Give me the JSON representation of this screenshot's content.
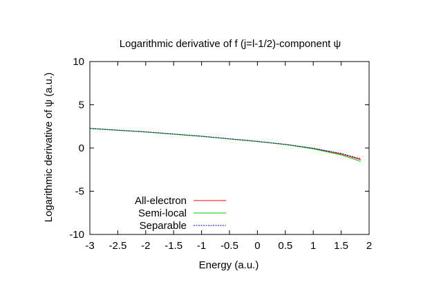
{
  "chart_data": {
    "type": "line",
    "title": "Logarithmic derivative of f (j=l-1/2)-component ψ",
    "xlabel": "Energy (a.u.)",
    "ylabel": "Logarithmic derivative of ψ (a.u.)",
    "xlim": [
      -3,
      2
    ],
    "ylim": [
      -10,
      10
    ],
    "xticks": [
      -3,
      -2.5,
      -2,
      -1.5,
      -1,
      -0.5,
      0,
      0.5,
      1,
      1.5,
      2
    ],
    "yticks": [
      -10,
      -5,
      0,
      5,
      10
    ],
    "xtick_labels": [
      "-3",
      "-2.5",
      "-2",
      "-1.5",
      "-1",
      "-0.5",
      "0",
      "0.5",
      "1",
      "1.5",
      "2"
    ],
    "ytick_labels": [
      "-10",
      "-5",
      "0",
      "5",
      "10"
    ],
    "grid": false,
    "legend_position": "bottom-left",
    "series": [
      {
        "name": "All-electron",
        "color": "#ff0000",
        "style": "solid",
        "x": [
          -3,
          -2.5,
          -2,
          -1.5,
          -1,
          -0.5,
          0,
          0.5,
          1,
          1.5,
          1.85
        ],
        "y": [
          2.25,
          2.05,
          1.85,
          1.6,
          1.35,
          1.05,
          0.75,
          0.4,
          -0.05,
          -0.7,
          -1.35
        ]
      },
      {
        "name": "Semi-local",
        "color": "#00cc00",
        "style": "solid",
        "x": [
          -3,
          -2.5,
          -2,
          -1.5,
          -1,
          -0.5,
          0,
          0.5,
          1,
          1.5,
          1.85
        ],
        "y": [
          2.25,
          2.05,
          1.85,
          1.6,
          1.35,
          1.05,
          0.75,
          0.4,
          -0.1,
          -0.8,
          -1.55
        ]
      },
      {
        "name": "Separable",
        "color": "#0000cc",
        "style": "dotted",
        "x": [
          -3,
          -2.5,
          -2,
          -1.5,
          -1,
          -0.5,
          0,
          0.5,
          1,
          1.5,
          1.85
        ],
        "y": [
          2.28,
          2.07,
          1.87,
          1.62,
          1.37,
          1.07,
          0.78,
          0.43,
          -0.02,
          -0.62,
          -1.25
        ]
      }
    ]
  }
}
